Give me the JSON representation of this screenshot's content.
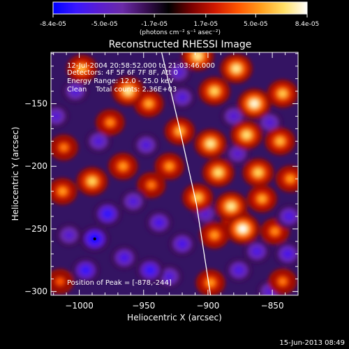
{
  "colorbar": {
    "tick_labels": [
      "-8.4e-05",
      "-5.0e-05",
      "-1.7e-05",
      "1.7e-05",
      "5.0e-05",
      "8.4e-05"
    ],
    "tick_values": [
      -8.4e-05,
      -5e-05,
      -1.7e-05,
      1.7e-05,
      5e-05,
      8.4e-05
    ],
    "range": [
      -8.4e-05,
      8.4e-05
    ],
    "unit_label": "(photons cm⁻² s⁻¹ asec⁻²)",
    "colormap": [
      "#0000ff",
      "#3a17ff",
      "#5a1dd0",
      "#6a2aa8",
      "#3a0f55",
      "#000000",
      "#7a0000",
      "#d01800",
      "#ff5500",
      "#ff9e1c",
      "#ffe066",
      "#ffffff"
    ]
  },
  "chart_data": {
    "type": "heatmap",
    "title": "Reconstructed RHESSI Image",
    "xlabel": "Heliocentric X (arcsec)",
    "ylabel": "Heliocentric Y (arcsec)",
    "xlim": [
      -1022,
      -830
    ],
    "ylim": [
      -303,
      -109
    ],
    "x_ticks": [
      -1000,
      -950,
      -900,
      -850
    ],
    "y_ticks": [
      -300,
      -250,
      -200,
      -150
    ],
    "x_tick_labels": [
      "−1000",
      "−950",
      "−900",
      "−850"
    ],
    "y_tick_labels": [
      "−300",
      "−250",
      "−200",
      "−150"
    ],
    "annotations": [
      "12-Jul-2004 20:58:52.000 to 21:03:46.000",
      "Detectors: 4F 5F 6F 7F 8F, Att 0",
      "Energy Range: 12.0 - 25.0 keV",
      "Clean    Total counts: 2.36E+03"
    ],
    "peak_label": "Position of Peak = [-878,-244]",
    "peak_position": [
      -878,
      -244
    ],
    "blobs": [
      {
        "x": -998,
        "y": -122,
        "v": 0.65
      },
      {
        "x": -962,
        "y": -140,
        "v": 0.85
      },
      {
        "x": -946,
        "y": -150,
        "v": 0.6
      },
      {
        "x": -976,
        "y": -165,
        "v": 0.5
      },
      {
        "x": -1012,
        "y": -185,
        "v": 0.45
      },
      {
        "x": -990,
        "y": -212,
        "v": 0.75
      },
      {
        "x": -1013,
        "y": -220,
        "v": 0.55
      },
      {
        "x": -966,
        "y": -200,
        "v": 0.55
      },
      {
        "x": -944,
        "y": -215,
        "v": 0.45
      },
      {
        "x": -908,
        "y": -112,
        "v": 0.85
      },
      {
        "x": -878,
        "y": -122,
        "v": 0.85
      },
      {
        "x": -895,
        "y": -140,
        "v": 0.75
      },
      {
        "x": -864,
        "y": -150,
        "v": 0.95
      },
      {
        "x": -842,
        "y": -142,
        "v": 0.7
      },
      {
        "x": -922,
        "y": -172,
        "v": 0.65
      },
      {
        "x": -898,
        "y": -182,
        "v": 0.85
      },
      {
        "x": -870,
        "y": -175,
        "v": 0.8
      },
      {
        "x": -844,
        "y": -180,
        "v": 0.65
      },
      {
        "x": -930,
        "y": -200,
        "v": 0.55
      },
      {
        "x": -892,
        "y": -205,
        "v": 0.8
      },
      {
        "x": -861,
        "y": -205,
        "v": 0.75
      },
      {
        "x": -836,
        "y": -210,
        "v": 0.55
      },
      {
        "x": -908,
        "y": -225,
        "v": 0.7
      },
      {
        "x": -882,
        "y": -232,
        "v": 0.85
      },
      {
        "x": -858,
        "y": -226,
        "v": 0.6
      },
      {
        "x": -895,
        "y": -255,
        "v": 0.55
      },
      {
        "x": -873,
        "y": -250,
        "v": 1.0
      },
      {
        "x": -848,
        "y": -252,
        "v": 0.5
      },
      {
        "x": -878,
        "y": -244,
        "v": 0.7
      },
      {
        "x": -898,
        "y": -293,
        "v": 0.55
      },
      {
        "x": -842,
        "y": -292,
        "v": 0.45
      },
      {
        "x": -1015,
        "y": -292,
        "v": 0.35
      },
      {
        "x": -1008,
        "y": -255,
        "v": -0.4
      },
      {
        "x": -988,
        "y": -258,
        "v": -0.95
      },
      {
        "x": -978,
        "y": -238,
        "v": -0.75
      },
      {
        "x": -995,
        "y": -283,
        "v": -0.7
      },
      {
        "x": -965,
        "y": -273,
        "v": -0.55
      },
      {
        "x": -945,
        "y": -283,
        "v": -0.7
      },
      {
        "x": -938,
        "y": -245,
        "v": -0.55
      },
      {
        "x": -958,
        "y": -228,
        "v": -0.45
      },
      {
        "x": -920,
        "y": -262,
        "v": -0.55
      },
      {
        "x": -930,
        "y": -288,
        "v": -0.45
      },
      {
        "x": -1003,
        "y": -140,
        "v": -0.45
      },
      {
        "x": -985,
        "y": -180,
        "v": -0.45
      },
      {
        "x": -948,
        "y": -183,
        "v": -0.45
      },
      {
        "x": -1018,
        "y": -160,
        "v": -0.4
      },
      {
        "x": -923,
        "y": -125,
        "v": -0.4
      },
      {
        "x": -920,
        "y": -145,
        "v": -0.45
      },
      {
        "x": -880,
        "y": -160,
        "v": -0.4
      },
      {
        "x": -852,
        "y": -165,
        "v": -0.4
      },
      {
        "x": -877,
        "y": -190,
        "v": -0.35
      },
      {
        "x": -902,
        "y": -238,
        "v": -0.35
      },
      {
        "x": -862,
        "y": -268,
        "v": -0.5
      },
      {
        "x": -838,
        "y": -270,
        "v": -0.55
      },
      {
        "x": -876,
        "y": -283,
        "v": -0.5
      },
      {
        "x": -852,
        "y": -300,
        "v": -0.4
      },
      {
        "x": -837,
        "y": -240,
        "v": -0.5
      }
    ],
    "limb_curve": [
      {
        "x": -936,
        "y": -109
      },
      {
        "x": -922,
        "y": -170
      },
      {
        "x": -909,
        "y": -230
      },
      {
        "x": -898,
        "y": -303
      }
    ],
    "grid": false
  },
  "footer": {
    "timestamp": "15-Jun-2013 08:49"
  }
}
